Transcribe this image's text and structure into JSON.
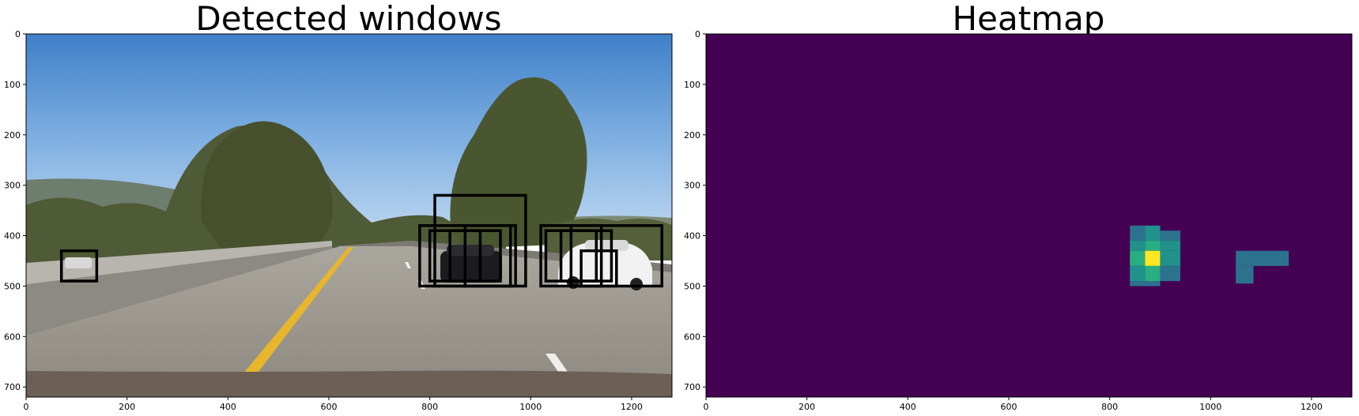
{
  "chart_data": [
    {
      "type": "image",
      "title": "Detected windows",
      "xlim": [
        0,
        1280
      ],
      "ylim": [
        720,
        0
      ],
      "xticks": [
        0,
        200,
        400,
        600,
        800,
        1000,
        1200
      ],
      "yticks": [
        0,
        100,
        200,
        300,
        400,
        500,
        600,
        700
      ],
      "image_description": "Dashcam view of a multi-lane highway under a blue sky with trees; a black sedan and a white sedan ahead on the right",
      "boxes": [
        {
          "x0": 70,
          "y0": 430,
          "x1": 140,
          "y1": 490
        },
        {
          "x0": 810,
          "y0": 320,
          "x1": 990,
          "y1": 500
        },
        {
          "x0": 780,
          "y0": 380,
          "x1": 960,
          "y1": 500
        },
        {
          "x0": 800,
          "y0": 390,
          "x1": 900,
          "y1": 490
        },
        {
          "x0": 840,
          "y0": 390,
          "x1": 940,
          "y1": 490
        },
        {
          "x0": 870,
          "y0": 380,
          "x1": 970,
          "y1": 500
        },
        {
          "x0": 1020,
          "y0": 380,
          "x1": 1140,
          "y1": 500
        },
        {
          "x0": 1030,
          "y0": 390,
          "x1": 1130,
          "y1": 490
        },
        {
          "x0": 1060,
          "y0": 390,
          "x1": 1160,
          "y1": 490
        },
        {
          "x0": 1080,
          "y0": 380,
          "x1": 1260,
          "y1": 500
        },
        {
          "x0": 1100,
          "y0": 430,
          "x1": 1170,
          "y1": 500
        }
      ]
    },
    {
      "type": "heatmap",
      "title": "Heatmap",
      "xlim": [
        0,
        1280
      ],
      "ylim": [
        720,
        0
      ],
      "xticks": [
        0,
        200,
        400,
        600,
        800,
        1000,
        1200
      ],
      "yticks": [
        0,
        100,
        200,
        300,
        400,
        500,
        600,
        700
      ],
      "background_color": "#440154",
      "cells": [
        {
          "x0": 840,
          "y0": 380,
          "x1": 870,
          "y1": 410,
          "value": 2
        },
        {
          "x0": 870,
          "y0": 380,
          "x1": 900,
          "y1": 410,
          "value": 3
        },
        {
          "x0": 900,
          "y0": 390,
          "x1": 940,
          "y1": 410,
          "value": 2
        },
        {
          "x0": 840,
          "y0": 410,
          "x1": 870,
          "y1": 430,
          "value": 3
        },
        {
          "x0": 870,
          "y0": 410,
          "x1": 900,
          "y1": 430,
          "value": 4
        },
        {
          "x0": 900,
          "y0": 410,
          "x1": 940,
          "y1": 430,
          "value": 3
        },
        {
          "x0": 840,
          "y0": 430,
          "x1": 870,
          "y1": 460,
          "value": 4
        },
        {
          "x0": 870,
          "y0": 430,
          "x1": 900,
          "y1": 460,
          "value": 6
        },
        {
          "x0": 900,
          "y0": 430,
          "x1": 940,
          "y1": 460,
          "value": 3
        },
        {
          "x0": 840,
          "y0": 460,
          "x1": 870,
          "y1": 490,
          "value": 3
        },
        {
          "x0": 870,
          "y0": 460,
          "x1": 900,
          "y1": 490,
          "value": 4
        },
        {
          "x0": 900,
          "y0": 460,
          "x1": 940,
          "y1": 490,
          "value": 2
        },
        {
          "x0": 840,
          "y0": 490,
          "x1": 900,
          "y1": 500,
          "value": 2
        },
        {
          "x0": 1050,
          "y0": 430,
          "x1": 1155,
          "y1": 460,
          "value": 2
        },
        {
          "x0": 1050,
          "y0": 460,
          "x1": 1085,
          "y1": 495,
          "value": 2
        }
      ]
    }
  ]
}
